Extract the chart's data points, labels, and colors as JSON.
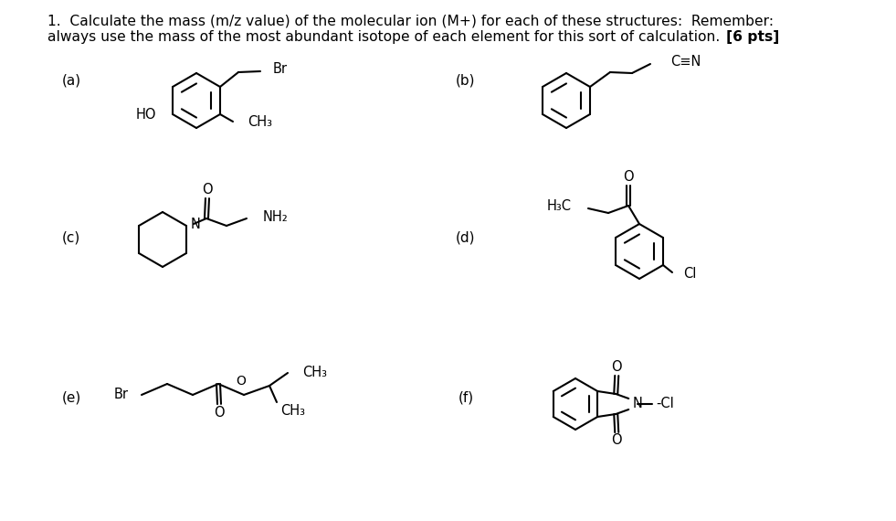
{
  "background_color": "#ffffff",
  "title_line1": "1.  Calculate the mass (m/z value) of the molecular ion (M+) for each of these structures:  Remember:",
  "title_line2_normal": "always use the mass of the most abundant isotope of each element for this sort of calculation. ",
  "title_line2_bold": "[6 pts]",
  "title_fontsize": 11.2,
  "label_fontsize": 11,
  "chem_fontsize": 10.5,
  "text_color": "#000000",
  "line_color": "#000000",
  "figsize": [
    9.81,
    5.7
  ],
  "dpi": 100
}
